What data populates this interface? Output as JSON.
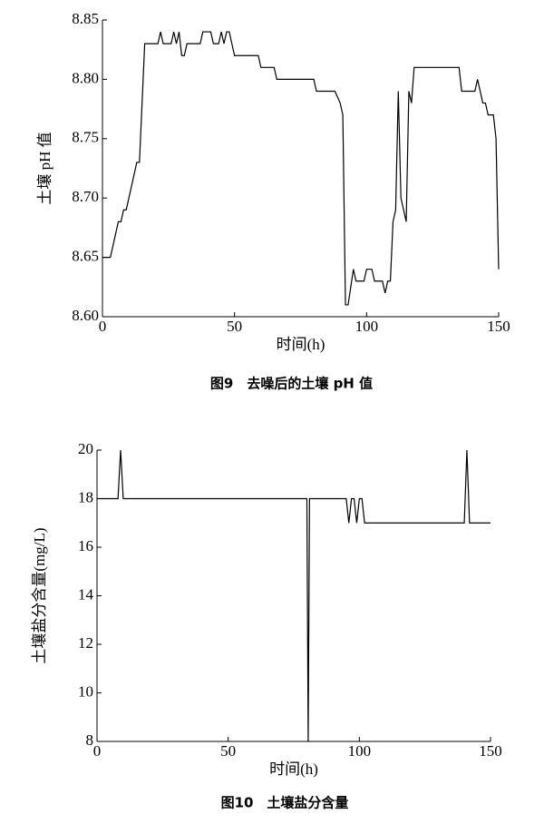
{
  "chart_data": [
    {
      "type": "line",
      "title": "图9　去噪后的土壤 pH 值",
      "x_label": "时间(h)",
      "y_label": "土壤 pH 值",
      "xlim": [
        0,
        150
      ],
      "xticks": [
        0,
        50,
        100,
        150
      ],
      "ylim": [
        8.6,
        8.85
      ],
      "yticks": [
        {
          "value": 8.6,
          "label": "8.60"
        },
        8.65,
        {
          "value": 8.7,
          "label": "8.70"
        },
        8.75,
        {
          "value": 8.8,
          "label": "8.80"
        },
        8.85
      ],
      "series": [
        {
          "color": "#000000",
          "x": [
            0,
            3,
            5,
            6,
            7,
            8,
            9,
            10,
            13,
            14,
            16,
            21,
            22,
            23,
            26,
            27,
            28,
            29,
            30,
            31,
            32,
            37,
            38,
            41,
            42,
            44,
            45,
            46,
            47,
            48,
            50,
            59,
            60,
            65,
            66,
            80,
            81,
            88,
            90,
            91,
            92,
            93,
            95,
            96,
            99,
            100,
            102,
            103,
            106,
            107,
            108,
            109,
            110,
            111,
            112,
            113,
            115,
            116,
            117,
            118,
            135,
            136,
            141,
            142,
            143,
            144,
            145,
            146,
            148,
            149,
            150
          ],
          "values": [
            8.65,
            8.65,
            8.67,
            8.68,
            8.68,
            8.69,
            8.69,
            8.7,
            8.73,
            8.73,
            8.83,
            8.83,
            8.84,
            8.83,
            8.83,
            8.84,
            8.83,
            8.84,
            8.82,
            8.82,
            8.83,
            8.83,
            8.84,
            8.84,
            8.83,
            8.83,
            8.84,
            8.83,
            8.84,
            8.84,
            8.82,
            8.82,
            8.81,
            8.81,
            8.8,
            8.8,
            8.79,
            8.79,
            8.78,
            8.77,
            8.61,
            8.61,
            8.64,
            8.63,
            8.63,
            8.64,
            8.64,
            8.63,
            8.63,
            8.62,
            8.63,
            8.63,
            8.68,
            8.69,
            8.79,
            8.7,
            8.68,
            8.79,
            8.78,
            8.81,
            8.81,
            8.79,
            8.79,
            8.8,
            8.79,
            8.78,
            8.78,
            8.77,
            8.77,
            8.75,
            8.64
          ]
        }
      ]
    },
    {
      "type": "line",
      "title": "图10　土壤盐分含量",
      "x_label": "时间(h)",
      "y_label": "土壤盐分含量(mg/L)",
      "xlim": [
        0,
        150
      ],
      "xticks": [
        0,
        50,
        100,
        150
      ],
      "ylim": [
        8,
        20
      ],
      "yticks": [
        8,
        10,
        12,
        14,
        16,
        18,
        20
      ],
      "series": [
        {
          "color": "#000000",
          "x": [
            0,
            8,
            9,
            10,
            80,
            80.5,
            81,
            95,
            96,
            97,
            98,
            99,
            100,
            101,
            102,
            140,
            141,
            142,
            150
          ],
          "values": [
            18,
            18,
            20,
            18,
            18,
            8,
            18,
            18,
            17,
            18,
            18,
            17,
            18,
            18,
            17,
            17,
            20,
            17,
            17
          ]
        }
      ]
    }
  ]
}
